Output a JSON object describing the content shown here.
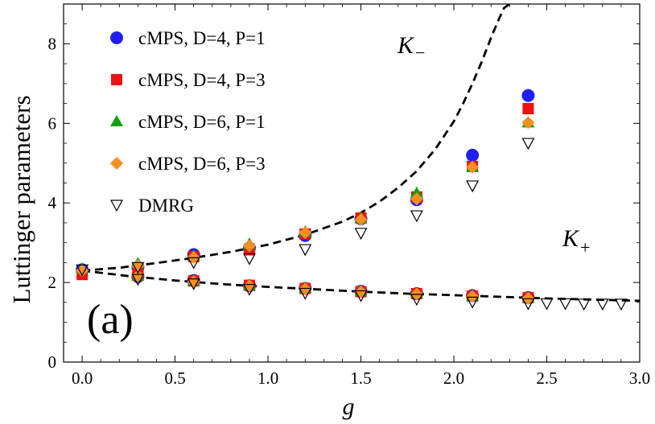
{
  "chart_data": {
    "type": "scatter",
    "xlabel": "g",
    "ylabel": "Luttinger parameters",
    "xlim": [
      -0.1,
      3.0
    ],
    "ylim": [
      0,
      9
    ],
    "x_ticks": [
      "0.0",
      "0.5",
      "1.0",
      "1.5",
      "2.0",
      "2.5",
      "3.0"
    ],
    "y_ticks": [
      "0",
      "2",
      "4",
      "6",
      "8"
    ],
    "panel_label": "(a)",
    "annotations": [
      {
        "text": "K",
        "sub": "−",
        "x": 1.72,
        "y": 8.0
      },
      {
        "text": "K",
        "sub": "+",
        "x": 2.62,
        "y": 2.7
      }
    ],
    "legend_position": "top-left",
    "series": [
      {
        "name": "cMPS, D=4, P=1",
        "marker": "circle",
        "color": "#1f1ff5",
        "points": [
          [
            0.0,
            2.32
          ],
          [
            0.3,
            2.38
          ],
          [
            0.6,
            2.7
          ],
          [
            0.9,
            2.87
          ],
          [
            1.2,
            3.18
          ],
          [
            1.5,
            3.6
          ],
          [
            1.8,
            4.08
          ],
          [
            2.1,
            5.2
          ],
          [
            2.4,
            6.7
          ],
          [
            0.3,
            2.15
          ],
          [
            0.6,
            2.05
          ],
          [
            0.9,
            1.92
          ],
          [
            1.2,
            1.85
          ],
          [
            1.5,
            1.78
          ],
          [
            1.8,
            1.72
          ],
          [
            2.1,
            1.67
          ],
          [
            2.4,
            1.62
          ]
        ]
      },
      {
        "name": "cMPS, D=4, P=3",
        "marker": "square",
        "color": "#ee1111",
        "points": [
          [
            0.0,
            2.2
          ],
          [
            0.3,
            2.3
          ],
          [
            0.6,
            2.65
          ],
          [
            0.9,
            2.82
          ],
          [
            1.2,
            3.22
          ],
          [
            1.5,
            3.62
          ],
          [
            1.8,
            4.15
          ],
          [
            2.1,
            4.92
          ],
          [
            2.4,
            6.37
          ],
          [
            0.3,
            2.18
          ],
          [
            0.6,
            2.04
          ],
          [
            0.9,
            1.93
          ],
          [
            1.2,
            1.85
          ],
          [
            1.5,
            1.77
          ],
          [
            1.8,
            1.72
          ],
          [
            2.1,
            1.66
          ],
          [
            2.4,
            1.62
          ]
        ]
      },
      {
        "name": "cMPS, D=6, P=1",
        "marker": "triangle",
        "color": "#11a011",
        "points": [
          [
            0.0,
            2.35
          ],
          [
            0.3,
            2.48
          ],
          [
            0.6,
            2.67
          ],
          [
            0.9,
            2.97
          ],
          [
            1.2,
            3.28
          ],
          [
            1.5,
            3.62
          ],
          [
            1.8,
            4.25
          ],
          [
            2.1,
            4.9
          ],
          [
            2.4,
            6.02
          ],
          [
            0.3,
            2.17
          ],
          [
            0.6,
            2.04
          ],
          [
            0.9,
            1.93
          ],
          [
            1.2,
            1.86
          ],
          [
            1.5,
            1.79
          ],
          [
            1.8,
            1.73
          ],
          [
            2.1,
            1.66
          ],
          [
            2.4,
            1.62
          ]
        ]
      },
      {
        "name": "cMPS, D=6, P=3",
        "marker": "diamond",
        "color": "#f5901e",
        "points": [
          [
            0.0,
            2.3
          ],
          [
            0.3,
            2.42
          ],
          [
            0.6,
            2.63
          ],
          [
            0.9,
            2.92
          ],
          [
            1.2,
            3.25
          ],
          [
            1.5,
            3.58
          ],
          [
            1.8,
            4.1
          ],
          [
            2.1,
            4.9
          ],
          [
            2.4,
            6.02
          ],
          [
            0.3,
            2.17
          ],
          [
            0.6,
            2.02
          ],
          [
            0.9,
            1.92
          ],
          [
            1.2,
            1.84
          ],
          [
            1.5,
            1.77
          ],
          [
            1.8,
            1.71
          ],
          [
            2.1,
            1.65
          ],
          [
            2.4,
            1.6
          ]
        ]
      },
      {
        "name": "DMRG",
        "marker": "open-down-triangle",
        "color": "#000000",
        "points": [
          [
            0.0,
            2.32
          ],
          [
            0.3,
            2.38
          ],
          [
            0.6,
            2.5
          ],
          [
            0.9,
            2.6
          ],
          [
            1.2,
            2.83
          ],
          [
            1.5,
            3.24
          ],
          [
            1.8,
            3.68
          ],
          [
            2.1,
            4.43
          ],
          [
            2.4,
            5.5
          ],
          [
            0.3,
            2.08
          ],
          [
            0.6,
            1.97
          ],
          [
            0.9,
            1.83
          ],
          [
            1.2,
            1.73
          ],
          [
            1.5,
            1.67
          ],
          [
            1.8,
            1.58
          ],
          [
            2.1,
            1.51
          ],
          [
            2.4,
            1.47
          ],
          [
            2.5,
            1.47
          ],
          [
            2.6,
            1.47
          ],
          [
            2.7,
            1.46
          ],
          [
            2.8,
            1.46
          ],
          [
            2.9,
            1.46
          ]
        ]
      },
      {
        "name": "K− theory",
        "style": "dashed",
        "color": "#000000",
        "x": [
          0.0,
          0.2,
          0.4,
          0.6,
          0.8,
          1.0,
          1.2,
          1.4,
          1.5,
          1.6,
          1.7,
          1.8,
          1.9,
          2.0,
          2.05,
          2.1,
          2.15,
          2.2,
          2.24,
          2.27,
          2.3
        ],
        "y": [
          2.3,
          2.37,
          2.49,
          2.62,
          2.77,
          2.95,
          3.2,
          3.53,
          3.75,
          4.03,
          4.38,
          4.8,
          5.35,
          6.05,
          6.5,
          7.0,
          7.55,
          8.15,
          8.6,
          8.9,
          9.0
        ]
      },
      {
        "name": "K+ theory",
        "style": "dashed",
        "color": "#000000",
        "x": [
          0.0,
          0.25,
          0.5,
          0.75,
          1.0,
          1.25,
          1.5,
          1.75,
          2.0,
          2.25,
          2.5,
          2.75,
          3.0
        ],
        "y": [
          2.3,
          2.16,
          2.05,
          1.96,
          1.89,
          1.83,
          1.77,
          1.72,
          1.68,
          1.64,
          1.6,
          1.57,
          1.54
        ]
      }
    ]
  }
}
